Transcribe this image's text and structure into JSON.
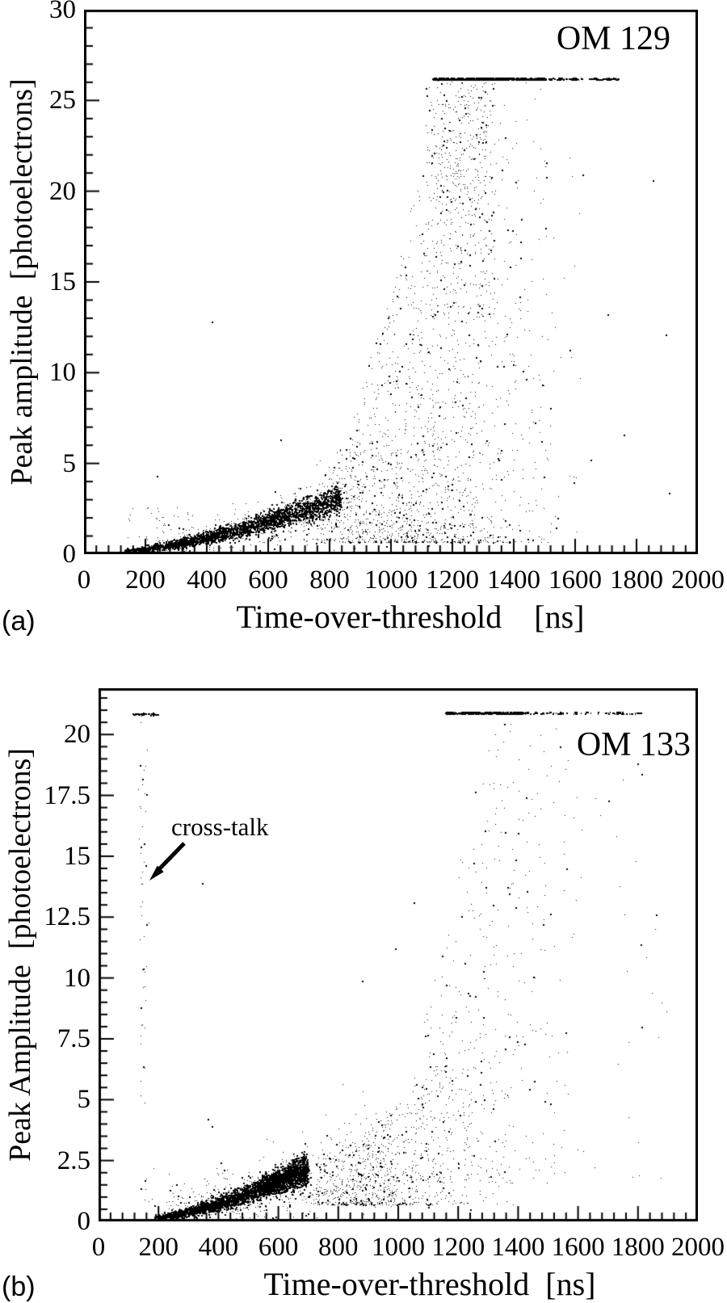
{
  "figure": {
    "panel_a_letter": "(a)",
    "panel_b_letter": "(b)",
    "annotation": {
      "text": "cross-talk"
    },
    "ink_color": "#000000",
    "background_color": "#ffffff"
  },
  "chart_data": [
    {
      "type": "scatter",
      "panel": "a",
      "title": "OM 129",
      "xlabel": "Time-over-threshold    [ns]",
      "ylabel": "Peak amplitude  [photoelectrons]",
      "xlim": [
        0,
        2000
      ],
      "ylim": [
        0,
        30
      ],
      "x_major_ticks": [
        0,
        200,
        400,
        600,
        800,
        1000,
        1200,
        1400,
        1600,
        1800,
        2000
      ],
      "x_tick_labels": [
        "0",
        "200",
        "400",
        "600",
        "800",
        "1000",
        "1200",
        "1400",
        "1600",
        "1800",
        "2000"
      ],
      "x_minor_step": 40,
      "y_major_ticks": [
        0,
        5,
        10,
        15,
        20,
        25,
        30
      ],
      "y_tick_labels": [
        "0",
        "5",
        "10",
        "15",
        "20",
        "25",
        "30"
      ],
      "y_minor_step": 1,
      "grid": false,
      "saturation_amplitude_pe": 26.2,
      "saturation_tot_range_ns": [
        1135,
        1745
      ],
      "clusters": [
        {
          "kind": "band",
          "n": 2800,
          "x0": 130,
          "x1": 835,
          "c0": 0.22,
          "amp": 2.9,
          "pow": 1.45,
          "w0": 0.045,
          "w1": 0.4,
          "xbias": 0.8,
          "size": 2
        },
        {
          "kind": "band",
          "n": 320,
          "x0": 240,
          "x1": 900,
          "c0": 0.3,
          "amp": 3.0,
          "pow": 1.4,
          "w0": 0.3,
          "w1": 1.3,
          "xbias": 0.75,
          "size": 1
        },
        {
          "kind": "cloud",
          "n": 1750,
          "xmean": 1110,
          "xsd": 195,
          "x0": 710,
          "x1": 1530,
          "envx0": 690,
          "envspan": 470,
          "env0": 2.6,
          "envamp": 23.6,
          "envpow": 1.6,
          "ylow": 0.65,
          "decay": 2.05,
          "size": 1
        },
        {
          "kind": "rect",
          "n": 280,
          "x0": 1110,
          "x1": 1340,
          "y0": 13,
          "y1": 26.1,
          "size": 1
        },
        {
          "kind": "rect",
          "n": 110,
          "x0": 1130,
          "x1": 1310,
          "y0": 20,
          "y1": 26.05,
          "size": 1
        },
        {
          "kind": "hline",
          "n": 560,
          "y": 26.2,
          "x0": 1135,
          "x1": 1500,
          "jitter": 0.05,
          "dash": 4
        },
        {
          "kind": "hline",
          "n": 70,
          "y": 26.2,
          "x0": 1500,
          "x1": 1745,
          "jitter": 0.05,
          "dash": 4
        },
        {
          "kind": "rect",
          "n": 48,
          "x0": 135,
          "x1": 370,
          "y0": 0.7,
          "y1": 2.6,
          "size": 1
        },
        {
          "kind": "rect",
          "n": 55,
          "x0": 1340,
          "x1": 1620,
          "y0": 1.2,
          "y1": 22,
          "size": 1
        },
        {
          "kind": "points",
          "size": 2,
          "pts": [
            [
              416,
              12.8
            ],
            [
              237,
              4.3
            ],
            [
              640,
              6.3
            ],
            [
              1852,
              20.6
            ],
            [
              1896,
              12.1
            ],
            [
              1624,
              20.9
            ],
            [
              1704,
              13.2
            ],
            [
              1757,
              6.6
            ],
            [
              1905,
              3.4
            ],
            [
              1120,
              0.5
            ],
            [
              985,
              0.45
            ],
            [
              880,
              0.35
            ],
            [
              1460,
              0.8
            ],
            [
              1543,
              2.0
            ],
            [
              1650,
              5.2
            ]
          ]
        }
      ]
    },
    {
      "type": "scatter",
      "panel": "b",
      "title": "OM 133",
      "xlabel": "Time-over-threshold  [ns]",
      "ylabel": "Peak Amplitude  [photoelectrons]",
      "xlim": [
        0,
        2000
      ],
      "ylim": [
        0,
        21.9
      ],
      "x_major_ticks": [
        0,
        200,
        400,
        600,
        800,
        1000,
        1200,
        1400,
        1600,
        1800,
        2000
      ],
      "x_tick_labels": [
        "0",
        "200",
        "400",
        "600",
        "800",
        "1000",
        "1200",
        "1400",
        "1600",
        "1800",
        "2000"
      ],
      "x_minor_step": 40,
      "y_major_ticks": [
        0,
        2.5,
        5,
        7.5,
        10,
        12.5,
        15,
        17.5,
        20
      ],
      "y_tick_labels": [
        "0",
        "2.5",
        "5",
        "7.5",
        "10",
        "12.5",
        "15",
        "17.5",
        "20"
      ],
      "y_minor_step": 0.5,
      "grid": false,
      "saturation_amplitude_pe": 20.9,
      "saturation_tot_range_ns": [
        1155,
        1830
      ],
      "crosstalk_tot_ns": 150,
      "annotation": "cross-talk",
      "clusters": [
        {
          "kind": "vband",
          "n": 50,
          "xmean": 148,
          "xsd": 8,
          "y0": 4.3,
          "y1": 20.7,
          "size": 1
        },
        {
          "kind": "hline",
          "n": 42,
          "y": 20.85,
          "x0": 112,
          "x1": 198,
          "jitter": 0.04,
          "dash": 3
        },
        {
          "kind": "band",
          "n": 3000,
          "x0": 185,
          "x1": 695,
          "c0": 0.2,
          "amp": 2.0,
          "pow": 1.5,
          "w0": 0.045,
          "w1": 0.3,
          "xbias": 0.7,
          "size": 2
        },
        {
          "kind": "band",
          "n": 650,
          "x0": 545,
          "x1": 700,
          "c0": 1.45,
          "amp": 0.6,
          "pow": 1.0,
          "w0": 0.22,
          "w1": 0.3,
          "xbias": 1,
          "size": 2
        },
        {
          "kind": "band",
          "n": 520,
          "x0": 230,
          "x1": 1000,
          "c0": 0.35,
          "amp": 2.4,
          "pow": 1.3,
          "w0": 0.35,
          "w1": 1.4,
          "xbias": 0.8,
          "size": 1
        },
        {
          "kind": "cloud",
          "n": 750,
          "xmean": 950,
          "xsd": 175,
          "x0": 700,
          "x1": 1420,
          "envx0": 670,
          "envspan": 530,
          "env0": 2.2,
          "envamp": 5.5,
          "envpow": 1.5,
          "ylow": 0.7,
          "decay": 1.9,
          "size": 1
        },
        {
          "kind": "cloud",
          "n": 480,
          "xmean": 1240,
          "xsd": 160,
          "x0": 1040,
          "x1": 1600,
          "envx0": 1040,
          "envspan": 260,
          "env0": 6,
          "envamp": 14.6,
          "envpow": 1.1,
          "ylow": 1.6,
          "decay": 1.45,
          "size": 1
        },
        {
          "kind": "hline",
          "n": 230,
          "y": 20.9,
          "x0": 1155,
          "x1": 1430,
          "jitter": 0.04,
          "dash": 4
        },
        {
          "kind": "hline",
          "n": 60,
          "y": 20.9,
          "x0": 1430,
          "x1": 1830,
          "jitter": 0.04,
          "dash": 3
        },
        {
          "kind": "rect",
          "n": 55,
          "x0": 1400,
          "x1": 1900,
          "y0": 1.2,
          "y1": 19,
          "size": 1
        },
        {
          "kind": "rect",
          "n": 40,
          "x0": 140,
          "x1": 430,
          "y0": 0.5,
          "y1": 2.2,
          "size": 1
        },
        {
          "kind": "points",
          "size": 2,
          "pts": [
            [
              365,
              4.2
            ],
            [
              378,
              3.9
            ],
            [
              880,
              9.9
            ],
            [
              1810,
              8.0
            ],
            [
              1860,
              12.6
            ],
            [
              1700,
              17.3
            ],
            [
              1540,
              19.5
            ],
            [
              990,
              11.2
            ],
            [
              1052,
              13.1
            ],
            [
              345,
              13.9
            ],
            [
              1240,
              0.5
            ],
            [
              1100,
              0.6
            ]
          ]
        }
      ]
    }
  ]
}
